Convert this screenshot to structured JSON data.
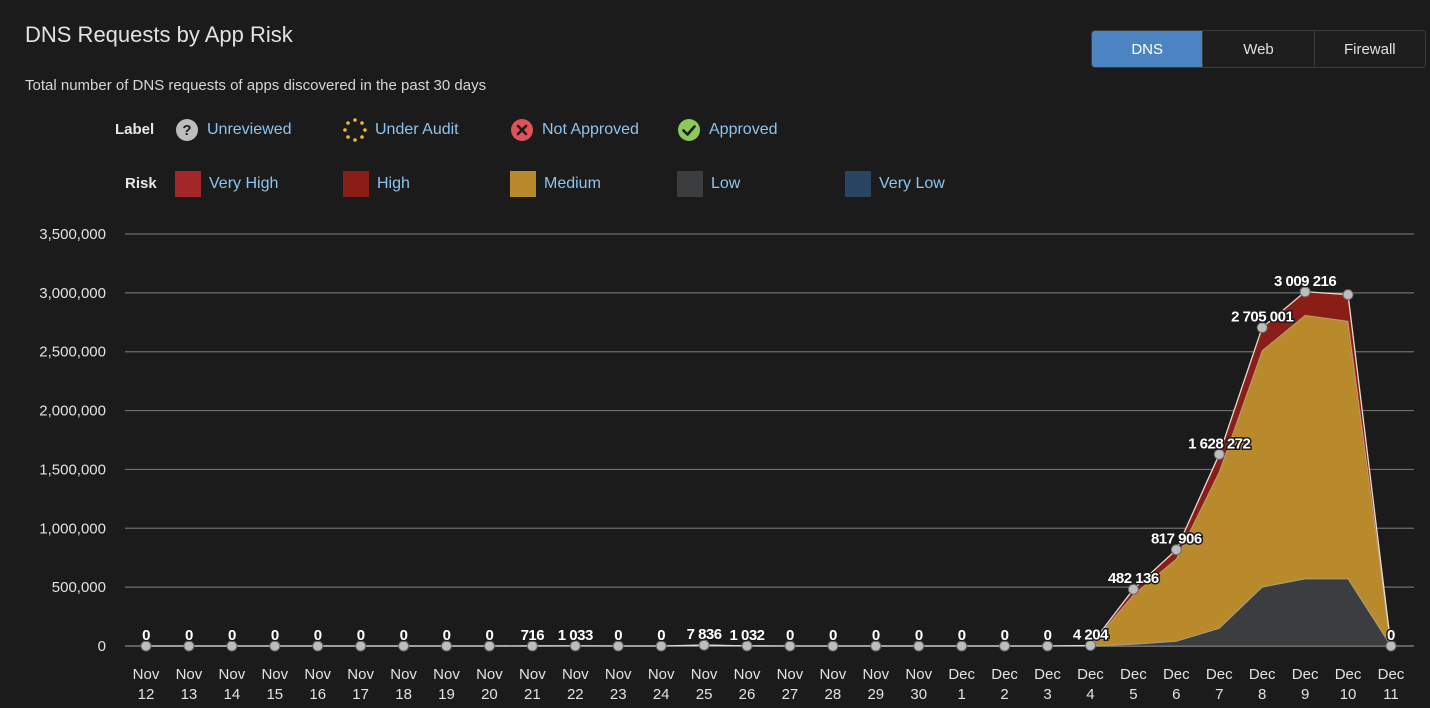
{
  "header": {
    "title": "DNS Requests by App Risk",
    "subtitle": "Total number of DNS requests of apps discovered in the past 30 days"
  },
  "tabs": [
    {
      "label": "DNS",
      "active": true
    },
    {
      "label": "Web",
      "active": false
    },
    {
      "label": "Firewall",
      "active": false
    }
  ],
  "legend": {
    "label_heading": "Label",
    "labels": [
      {
        "text": "Unreviewed",
        "icon": "question-circle-icon",
        "color": "#bdbdbd"
      },
      {
        "text": "Under Audit",
        "icon": "dotted-circle-icon",
        "color": "#f2b732"
      },
      {
        "text": "Not Approved",
        "icon": "x-circle-icon",
        "color": "#e0525a"
      },
      {
        "text": "Approved",
        "icon": "check-circle-icon",
        "color": "#8cc85c"
      }
    ],
    "risk_heading": "Risk",
    "risks": [
      {
        "text": "Very High",
        "color": "#a3262b"
      },
      {
        "text": "High",
        "color": "#8a1e17"
      },
      {
        "text": "Medium",
        "color": "#b98a2c"
      },
      {
        "text": "Low",
        "color": "#3b3d3f"
      },
      {
        "text": "Very Low",
        "color": "#2a4562"
      }
    ]
  },
  "chart_data": {
    "type": "area",
    "stacked": true,
    "categories": [
      "Nov 12",
      "Nov 13",
      "Nov 14",
      "Nov 15",
      "Nov 16",
      "Nov 17",
      "Nov 18",
      "Nov 19",
      "Nov 20",
      "Nov 21",
      "Nov 22",
      "Nov 23",
      "Nov 24",
      "Nov 25",
      "Nov 26",
      "Nov 27",
      "Nov 28",
      "Nov 29",
      "Nov 30",
      "Dec 1",
      "Dec 2",
      "Dec 3",
      "Dec 4",
      "Dec 5",
      "Dec 6",
      "Dec 7",
      "Dec 8",
      "Dec 9",
      "Dec 10",
      "Dec 11"
    ],
    "ylim": [
      0,
      3500000
    ],
    "yticks": [
      0,
      500000,
      1000000,
      1500000,
      2000000,
      2500000,
      3000000,
      3500000
    ],
    "ytick_labels": [
      "0",
      "500,000",
      "1,000,000",
      "1,500,000",
      "2,000,000",
      "2,500,000",
      "3,000,000",
      "3,500,000"
    ],
    "series": [
      {
        "name": "Very Low",
        "color": "#2a4562",
        "values": [
          0,
          0,
          0,
          0,
          0,
          0,
          0,
          0,
          0,
          0,
          0,
          0,
          0,
          0,
          0,
          0,
          0,
          0,
          0,
          0,
          0,
          0,
          0,
          0,
          0,
          0,
          0,
          0,
          0,
          0
        ]
      },
      {
        "name": "Low",
        "color": "#3b3d3f",
        "values": [
          0,
          0,
          0,
          0,
          0,
          0,
          0,
          0,
          0,
          0,
          0,
          0,
          0,
          0,
          0,
          0,
          0,
          0,
          0,
          0,
          0,
          0,
          0,
          15000,
          40000,
          150000,
          500000,
          570000,
          570000,
          0
        ]
      },
      {
        "name": "Medium",
        "color": "#b98a2c",
        "values": [
          0,
          0,
          0,
          0,
          0,
          0,
          0,
          0,
          0,
          716,
          1033,
          0,
          0,
          7836,
          1032,
          0,
          0,
          0,
          0,
          0,
          0,
          0,
          4204,
          420000,
          700000,
          1330000,
          2010000,
          2240000,
          2190000,
          0
        ]
      },
      {
        "name": "High",
        "color": "#8a1e17",
        "values": [
          0,
          0,
          0,
          0,
          0,
          0,
          0,
          0,
          0,
          0,
          0,
          0,
          0,
          0,
          0,
          0,
          0,
          0,
          0,
          0,
          0,
          0,
          0,
          47136,
          77906,
          148272,
          195001,
          199216,
          225000,
          0
        ]
      },
      {
        "name": "Very High",
        "color": "#a3262b",
        "values": [
          0,
          0,
          0,
          0,
          0,
          0,
          0,
          0,
          0,
          0,
          0,
          0,
          0,
          0,
          0,
          0,
          0,
          0,
          0,
          0,
          0,
          0,
          0,
          0,
          0,
          0,
          0,
          0,
          0,
          0
        ]
      }
    ],
    "totals": [
      0,
      0,
      0,
      0,
      0,
      0,
      0,
      0,
      0,
      716,
      1033,
      0,
      0,
      7836,
      1032,
      0,
      0,
      0,
      0,
      0,
      0,
      0,
      4204,
      482136,
      817906,
      1628272,
      2705001,
      3009216,
      2985000,
      0
    ],
    "data_labels": [
      "0",
      "0",
      "0",
      "0",
      "0",
      "0",
      "0",
      "0",
      "0",
      "716",
      "1 033",
      "0",
      "0",
      "7 836",
      "1 032",
      "0",
      "0",
      "0",
      "0",
      "0",
      "0",
      "0",
      "4 204",
      "482 136",
      "817 906",
      "1 628 272",
      "2 705 001",
      "3 009 216",
      "",
      "0"
    ],
    "grid": true,
    "legend_position": "top-left"
  }
}
